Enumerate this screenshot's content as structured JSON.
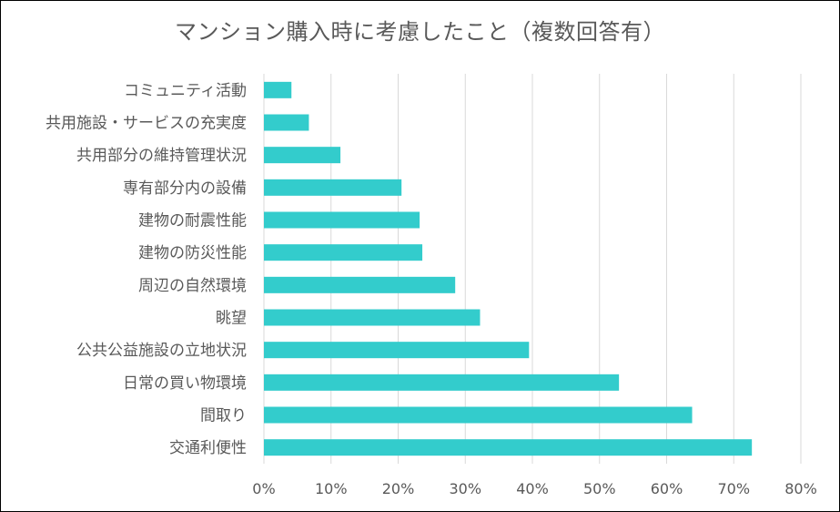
{
  "chart_data": {
    "type": "bar",
    "orientation": "horizontal",
    "title": "マンション購入時に考慮したこと（複数回答有）",
    "categories": [
      "コミュニティ活動",
      "共用施設・サービスの充実度",
      "共用部分の維持管理状況",
      "専有部分内の設備",
      "建物の耐震性能",
      "建物の防災性能",
      "周辺の自然環境",
      "眺望",
      "公共公益施設の立地状況",
      "日常の買い物環境",
      "間取り",
      "交通利便性"
    ],
    "values": [
      4.1,
      6.7,
      11.4,
      20.5,
      23.2,
      23.6,
      28.5,
      32.2,
      39.5,
      52.9,
      63.8,
      72.7
    ],
    "xlim": [
      0,
      80
    ],
    "x_ticks": [
      "0%",
      "10%",
      "20%",
      "30%",
      "40%",
      "50%",
      "60%",
      "70%",
      "80%"
    ],
    "x_tick_values": [
      0,
      10,
      20,
      30,
      40,
      50,
      60,
      70,
      80
    ],
    "grid": "vertical",
    "legend": "none",
    "bar_color": "#33CCCC",
    "grid_color": "#D9D9D9"
  }
}
